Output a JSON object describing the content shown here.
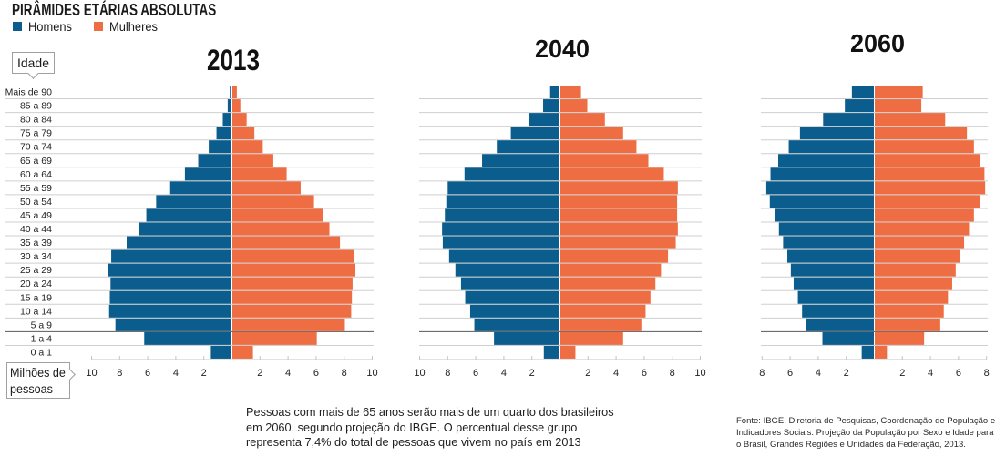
{
  "header": {
    "title": "PIRÂMIDES ETÁRIAS ABSOLUTAS"
  },
  "legend": [
    {
      "label": "Homens",
      "color": "#0b5d8d"
    },
    {
      "label": "Mulheres",
      "color": "#ef6d42"
    }
  ],
  "axis_callouts": {
    "y_label": "Idade",
    "x_label_lines": [
      "Milhões de",
      "pessoas"
    ]
  },
  "caption": [
    "Pessoas com mais de 65 anos serão mais de um quarto dos brasileiros",
    "em 2060, segundo projeção do IBGE. O percentual desse grupo",
    "representa 7,4% do total de pessoas que vivem no país em 2013"
  ],
  "source": [
    "Fonte: IBGE. Diretoria de Pesquisas, Coordenação de População e",
    "Indicadores Sociais. Projeção da População por Sexo e Idade para",
    "o Brasil, Grandes Regiões e Unidades da Federação, 2013."
  ],
  "chart_data": [
    {
      "type": "bar",
      "orientation": "population-pyramid",
      "title": "2013",
      "xlabel": "Milhões de pessoas",
      "ylabel": "Idade",
      "xlim": [
        -10,
        10
      ],
      "xticks": [
        -10,
        -8,
        -6,
        -4,
        -2,
        2,
        4,
        6,
        8,
        10
      ],
      "xtick_labels": [
        "10",
        "8",
        "6",
        "4",
        "2",
        "2",
        "4",
        "6",
        "8",
        "10"
      ],
      "grid": true,
      "legend_position": "top-left",
      "categories": [
        "Mais de 90",
        "85 a 89",
        "80 a 84",
        "75 a 79",
        "70 a 74",
        "65 a 69",
        "60 a 64",
        "55 a 59",
        "50 a 54",
        "45 a 49",
        "40 a 44",
        "35 a 39",
        "30 a 34",
        "25 a 29",
        "20 a 24",
        "15 a 19",
        "10 a 14",
        "5 a 9",
        "1 a 4",
        "0 a 1"
      ],
      "series": [
        {
          "name": "Homens",
          "side": "left",
          "values": [
            0.15,
            0.3,
            0.65,
            1.1,
            1.65,
            2.4,
            3.35,
            4.4,
            5.4,
            6.1,
            6.65,
            7.5,
            8.6,
            8.8,
            8.65,
            8.7,
            8.75,
            8.3,
            6.25,
            1.5
          ]
        },
        {
          "name": "Mulheres",
          "side": "right",
          "values": [
            0.35,
            0.6,
            1.05,
            1.6,
            2.2,
            2.95,
            3.9,
            4.9,
            5.85,
            6.5,
            6.95,
            7.7,
            8.7,
            8.8,
            8.6,
            8.55,
            8.5,
            8.05,
            6.05,
            1.5
          ]
        }
      ]
    },
    {
      "type": "bar",
      "orientation": "population-pyramid",
      "title": "2040",
      "xlim": [
        -10,
        10
      ],
      "xticks": [
        -10,
        -8,
        -6,
        -4,
        -2,
        2,
        4,
        6,
        8,
        10
      ],
      "xtick_labels": [
        "10",
        "8",
        "6",
        "4",
        "2",
        "2",
        "4",
        "6",
        "8",
        "10"
      ],
      "grid": true,
      "categories": [
        "Mais de 90",
        "85 a 89",
        "80 a 84",
        "75 a 79",
        "70 a 74",
        "65 a 69",
        "60 a 64",
        "55 a 59",
        "50 a 54",
        "45 a 49",
        "40 a 44",
        "35 a 39",
        "30 a 34",
        "25 a 29",
        "20 a 24",
        "15 a 19",
        "10 a 14",
        "5 a 9",
        "1 a 4",
        "0 a 1"
      ],
      "series": [
        {
          "name": "Homens",
          "side": "left",
          "values": [
            0.7,
            1.2,
            2.2,
            3.5,
            4.5,
            5.55,
            6.8,
            8.0,
            8.1,
            8.2,
            8.4,
            8.35,
            7.9,
            7.45,
            7.05,
            6.75,
            6.4,
            6.1,
            4.7,
            1.15
          ]
        },
        {
          "name": "Mulheres",
          "side": "right",
          "values": [
            1.5,
            1.95,
            3.2,
            4.5,
            5.45,
            6.3,
            7.4,
            8.4,
            8.35,
            8.35,
            8.4,
            8.25,
            7.7,
            7.2,
            6.8,
            6.45,
            6.1,
            5.8,
            4.5,
            1.1
          ]
        }
      ]
    },
    {
      "type": "bar",
      "orientation": "population-pyramid",
      "title": "2060",
      "xlim": [
        -8,
        8
      ],
      "xticks": [
        -8,
        -6,
        -4,
        -2,
        2,
        4,
        6,
        8
      ],
      "xtick_labels": [
        "8",
        "6",
        "4",
        "2",
        "2",
        "4",
        "6",
        "8"
      ],
      "grid": true,
      "categories": [
        "Mais de 90",
        "85 a 89",
        "80 a 84",
        "75 a 79",
        "70 a 74",
        "65 a 69",
        "60 a 64",
        "55 a 59",
        "50 a 54",
        "45 a 49",
        "40 a 44",
        "35 a 39",
        "30 a 34",
        "25 a 29",
        "20 a 24",
        "15 a 19",
        "10 a 14",
        "5 a 9",
        "1 a 4",
        "0 a 1"
      ],
      "series": [
        {
          "name": "Homens",
          "side": "left",
          "values": [
            1.6,
            2.1,
            3.65,
            5.3,
            6.1,
            6.85,
            7.4,
            7.7,
            7.45,
            7.1,
            6.8,
            6.5,
            6.2,
            5.95,
            5.75,
            5.45,
            5.15,
            4.85,
            3.7,
            0.9
          ]
        },
        {
          "name": "Mulheres",
          "side": "right",
          "values": [
            3.45,
            3.35,
            5.05,
            6.6,
            7.1,
            7.55,
            7.85,
            7.9,
            7.5,
            7.1,
            6.75,
            6.4,
            6.1,
            5.8,
            5.55,
            5.25,
            4.95,
            4.7,
            3.55,
            0.9
          ]
        }
      ]
    }
  ]
}
